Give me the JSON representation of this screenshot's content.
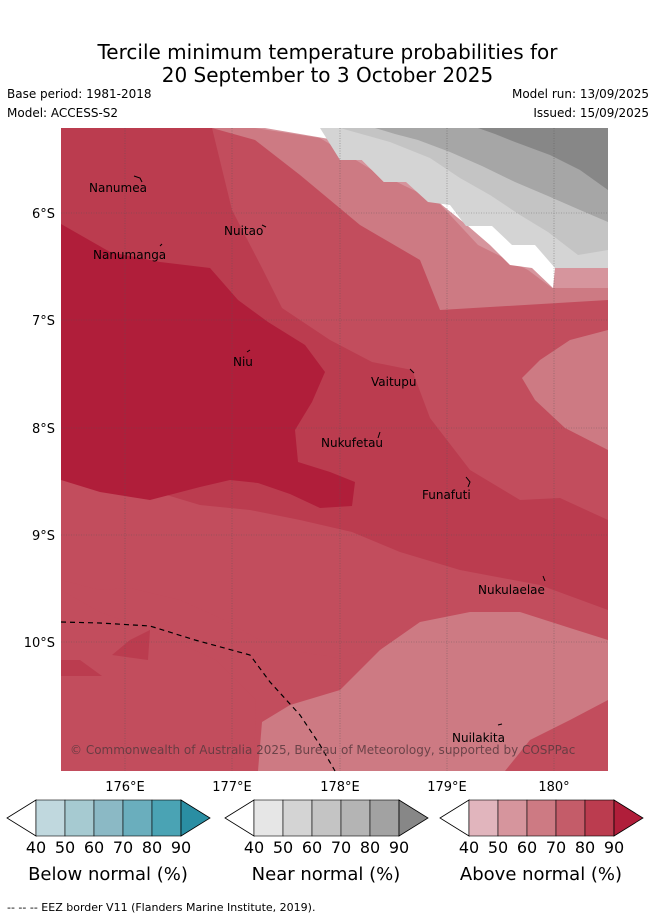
{
  "title_line1": "Tercile minimum temperature probabilities for",
  "title_line2": "20 September to 3 October 2025",
  "base_period": "Base period: 1981-2018",
  "model": "Model: ACCESS-S2",
  "model_run": "Model run: 13/09/2025",
  "issued": "Issued: 15/09/2025",
  "lat_labels": [
    "6°S",
    "7°S",
    "8°S",
    "9°S",
    "10°S"
  ],
  "lon_labels": [
    "176°E",
    "177°E",
    "178°E",
    "179°E",
    "180°"
  ],
  "places": {
    "nanumea": "Nanumea",
    "nuitao": "Nuitao",
    "nanumanga": "Nanumanga",
    "niu": "Niu",
    "vaitupu": "Vaitupu",
    "nukufetau": "Nukufetau",
    "funafuti": "Funafuti",
    "nukulaelae": "Nukulaelae",
    "nuilakita": "Nuilakita"
  },
  "copyright": "© Commonwealth of Australia 2025, Bureau of Meteorology, supported by COSPPac",
  "colorbars": {
    "below": {
      "title": "Below normal (%)",
      "ticks": [
        "40",
        "50",
        "60",
        "70",
        "80",
        "90"
      ],
      "colors": [
        "#c0d8de",
        "#a6cad1",
        "#8bb9c5",
        "#6aaebd",
        "#4aa3b4",
        "#2a8ea3"
      ]
    },
    "near": {
      "title": "Near normal (%)",
      "ticks": [
        "40",
        "50",
        "60",
        "70",
        "80",
        "90"
      ],
      "colors": [
        "#e6e6e6",
        "#d4d4d4",
        "#c4c4c4",
        "#b4b4b4",
        "#a2a2a2",
        "#878787"
      ]
    },
    "above": {
      "title": "Above normal (%)",
      "ticks": [
        "40",
        "50",
        "60",
        "70",
        "80",
        "90"
      ],
      "colors": [
        "#e1b5bd",
        "#d6959d",
        "#cd7a83",
        "#c45c69",
        "#bb3c4f",
        "#b01e3a"
      ]
    }
  },
  "eez_legend": "-- -- -- EEZ border V11 (Flanders Marine Institute, 2019)."
}
